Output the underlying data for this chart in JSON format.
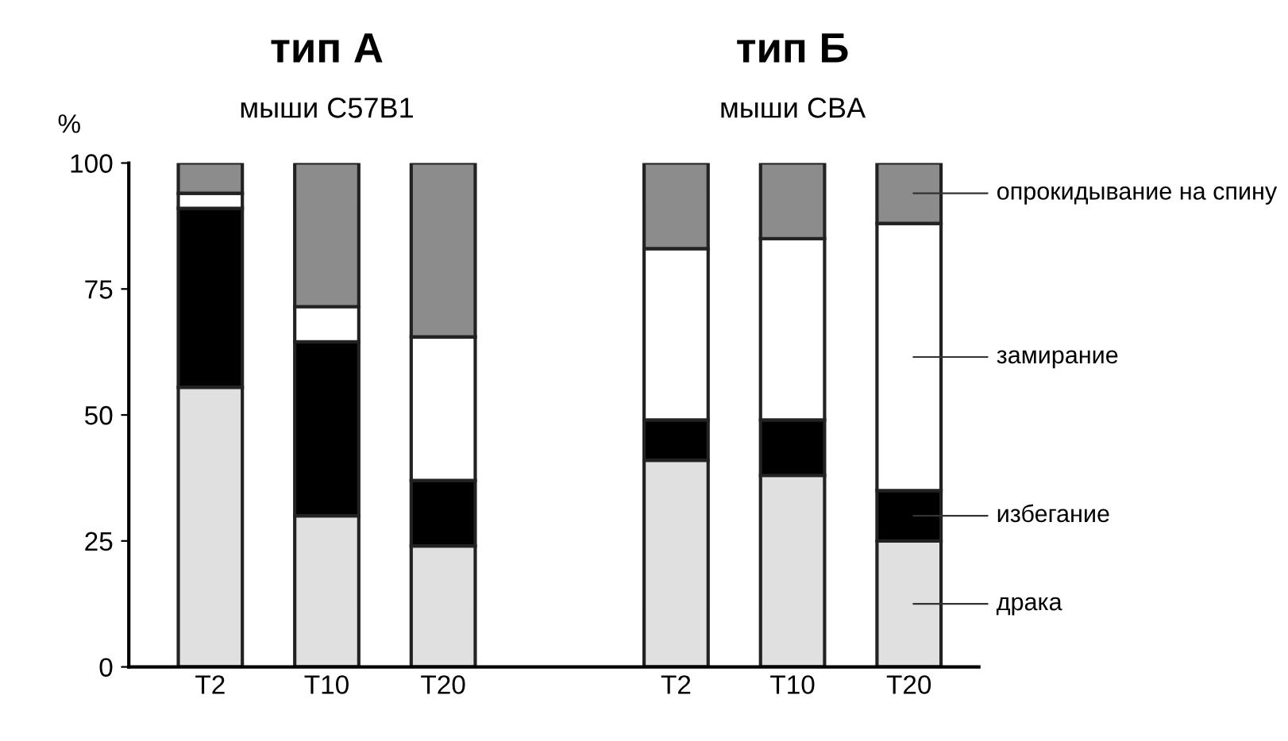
{
  "chart_data": {
    "type": "bar",
    "stacked": true,
    "ylabel": "%",
    "categories": [
      "T2",
      "T10",
      "T20",
      null,
      "T2",
      "T10",
      "T20"
    ],
    "series": [
      {
        "name": "драка",
        "color": "#e0e0e0",
        "values": [
          55.5,
          30,
          24,
          null,
          41,
          38,
          25
        ]
      },
      {
        "name": "избегание",
        "color": "#000000",
        "values": [
          35.5,
          34.5,
          13,
          null,
          8,
          11,
          10
        ]
      },
      {
        "name": "замирание",
        "color": "#ffffff",
        "values": [
          3,
          7,
          28.5,
          null,
          34,
          36,
          53
        ]
      },
      {
        "name": "опрокидывание на спину",
        "color": "#8c8c8c",
        "values": [
          6,
          28.5,
          34.5,
          null,
          17,
          15,
          12
        ]
      }
    ],
    "annotations": [
      "тип А",
      "мыши C57B1",
      "тип Б",
      "мыши CBA"
    ],
    "ylim": [
      0,
      100
    ],
    "yticks": [
      0,
      25,
      50,
      75,
      100
    ],
    "grid": false,
    "legend": false
  }
}
